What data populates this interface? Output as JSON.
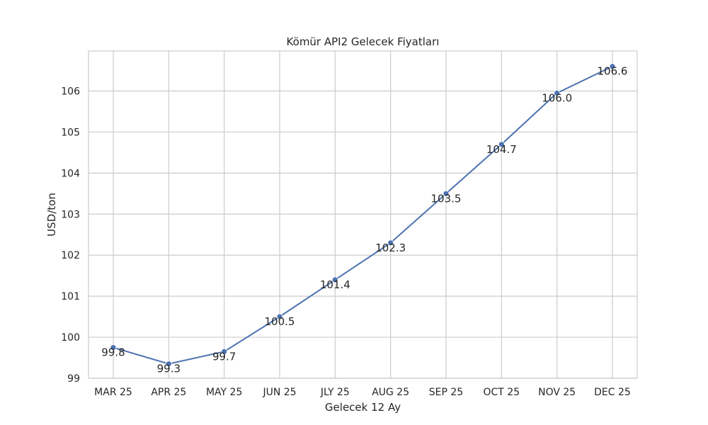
{
  "chart_data": {
    "type": "line",
    "title": "Kömür API2 Gelecek Fiyatları",
    "xlabel": "Gelecek 12 Ay",
    "ylabel": "USD/ton",
    "categories": [
      "MAR 25",
      "APR 25",
      "MAY 25",
      "JUN 25",
      "JLY 25",
      "AUG 25",
      "SEP 25",
      "OCT 25",
      "NOV 25",
      "DEC 25"
    ],
    "series": [
      {
        "name": "API2",
        "values": [
          99.75,
          99.35,
          99.65,
          100.5,
          101.4,
          102.3,
          103.5,
          104.7,
          105.95,
          106.6
        ],
        "labels": [
          "99.8",
          "99.3",
          "99.7",
          "100.5",
          "101.4",
          "102.3",
          "103.5",
          "104.7",
          "106.0",
          "106.6"
        ]
      }
    ],
    "ylim": [
      99.0,
      107.0
    ],
    "yticks": [
      99,
      100,
      101,
      102,
      103,
      104,
      105,
      106
    ],
    "grid": true,
    "line_color": "#4c72b0",
    "marker_color": "#4c72b0"
  }
}
